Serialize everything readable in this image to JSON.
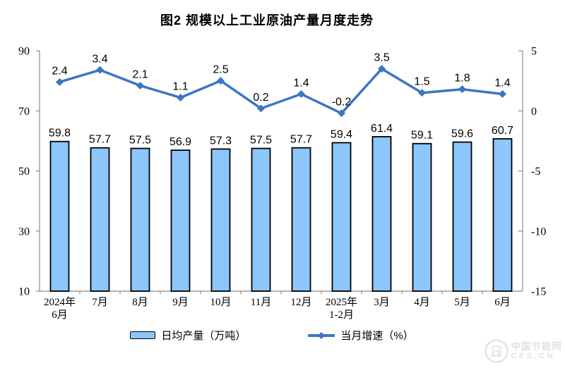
{
  "title": "图2 规模以上工业原油产量月度走势",
  "legend": {
    "bar_label": "日均产量（万吨）",
    "line_label": "当月增速（%）"
  },
  "watermark": {
    "name": "中国节能网",
    "domain": "CES.CN"
  },
  "colors": {
    "bar_fill": "#8CC6FA",
    "bar_stroke": "#000000",
    "line": "#3B76C4",
    "axis": "#8C8C8C",
    "text": "#000000",
    "watermark": "#E3E3E3"
  },
  "chart_data": {
    "type": "bar+line combo",
    "title": "图2 规模以上工业原油产量月度走势",
    "categories": [
      [
        "2024年",
        "6月"
      ],
      [
        "7月"
      ],
      [
        "8月"
      ],
      [
        "9月"
      ],
      [
        "10月"
      ],
      [
        "11月"
      ],
      [
        "12月"
      ],
      [
        "2025年",
        "1-2月"
      ],
      [
        "3月"
      ],
      [
        "4月"
      ],
      [
        "5月"
      ],
      [
        "6月"
      ]
    ],
    "series": [
      {
        "name": "日均产量（万吨）",
        "type": "bar",
        "axis": "left",
        "values": [
          59.8,
          57.7,
          57.5,
          56.9,
          57.3,
          57.5,
          57.7,
          59.4,
          61.4,
          59.1,
          59.6,
          60.7
        ]
      },
      {
        "name": "当月增速（%）",
        "type": "line",
        "axis": "right",
        "values": [
          2.4,
          3.4,
          2.1,
          1.1,
          2.5,
          0.2,
          1.4,
          -0.2,
          3.5,
          1.5,
          1.8,
          1.4
        ]
      }
    ],
    "left_axis": {
      "min": 10,
      "max": 90,
      "ticks": [
        90,
        70,
        50,
        30,
        10
      ]
    },
    "right_axis": {
      "min": -15,
      "max": 5,
      "ticks": [
        5,
        0,
        -5,
        -10,
        -15
      ]
    },
    "grid": false,
    "legend_position": "bottom"
  }
}
